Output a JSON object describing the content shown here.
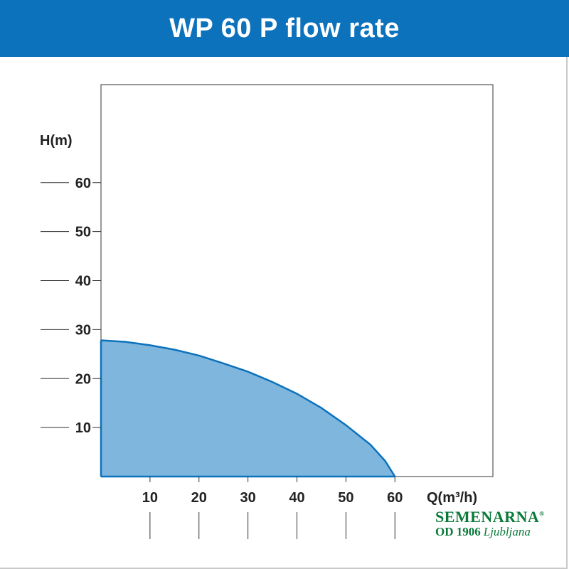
{
  "header": {
    "title": "WP 60 P flow rate"
  },
  "colors": {
    "header_bg": "#0d72bc",
    "fill": "#7fb6de",
    "curve": "#0d72bc",
    "logo": "#0a7a3a"
  },
  "chart_data": {
    "type": "area",
    "title": "WP 60 P flow rate",
    "xlabel": "Q(m³/h)",
    "ylabel": "H(m)",
    "xlim": [
      0,
      80
    ],
    "ylim": [
      0,
      80
    ],
    "xticks": [
      10,
      20,
      30,
      40,
      50,
      60
    ],
    "yticks": [
      10,
      20,
      30,
      40,
      50,
      60
    ],
    "grid": false,
    "x": [
      0,
      5,
      10,
      15,
      20,
      25,
      30,
      35,
      40,
      45,
      50,
      55,
      58,
      60
    ],
    "y": [
      27.8,
      27.5,
      26.8,
      25.9,
      24.7,
      23.1,
      21.4,
      19.3,
      16.9,
      14.0,
      10.5,
      6.5,
      3.2,
      0
    ]
  },
  "logo": {
    "name": "SEMENARNA",
    "reg": "®",
    "since": "OD 1906",
    "city": "Ljubljana"
  }
}
